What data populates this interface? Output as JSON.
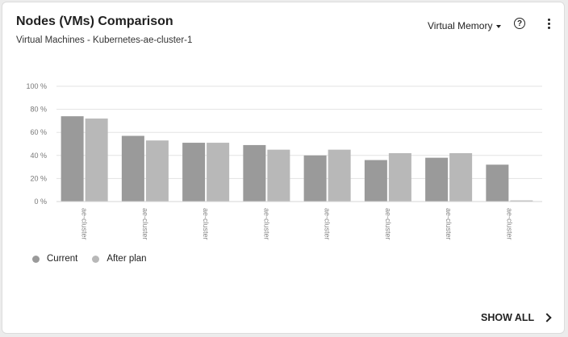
{
  "header": {
    "title": "Nodes (VMs) Comparison",
    "subtitle": "Virtual Machines - Kubernetes-ae-cluster-1",
    "metric_selector": "Virtual Memory",
    "help_icon": "question-circle-icon",
    "menu_icon": "kebab-menu-icon"
  },
  "legend": {
    "items": [
      {
        "label": "Current",
        "color": "#9a9a9a"
      },
      {
        "label": "After plan",
        "color": "#b8b8b8"
      }
    ]
  },
  "footer": {
    "show_all_label": "SHOW ALL"
  },
  "chart_data": {
    "type": "bar",
    "categories": [
      "ae-cluster",
      "ae-cluster",
      "ae-cluster",
      "ae-cluster",
      "ae-cluster",
      "ae-cluster",
      "ae-cluster",
      "ae-cluster"
    ],
    "series": [
      {
        "name": "Current",
        "values": [
          74,
          57,
          51,
          49,
          40,
          36,
          38,
          32
        ],
        "color": "#9a9a9a"
      },
      {
        "name": "After plan",
        "values": [
          72,
          53,
          51,
          45,
          45,
          42,
          42,
          1
        ],
        "color": "#b8b8b8"
      }
    ],
    "yticks": [
      "0 %",
      "20 %",
      "40 %",
      "60 %",
      "80 %",
      "100 %"
    ],
    "ylim": [
      0,
      100
    ],
    "grid": true,
    "legend_position": "bottom-left"
  }
}
